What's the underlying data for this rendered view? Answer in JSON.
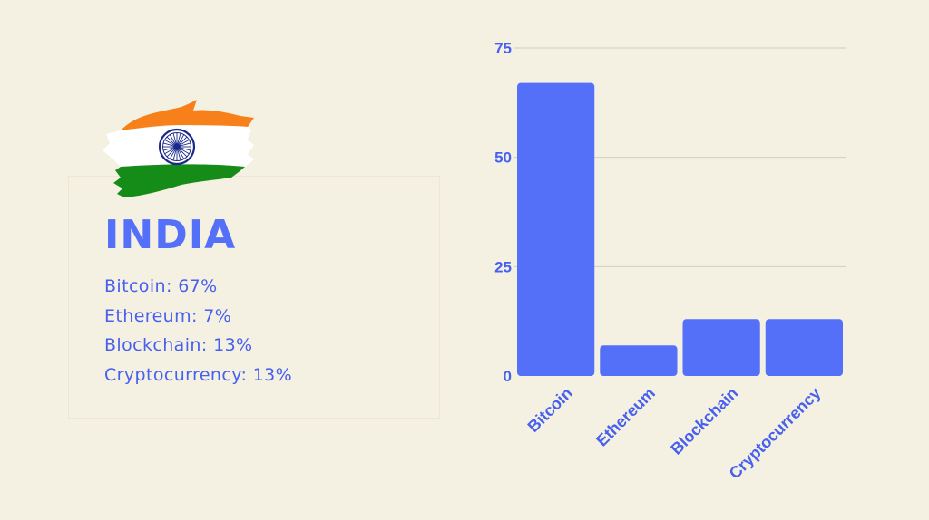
{
  "accent": "#5470f8",
  "text_color": "#4760ee",
  "flag_icon": "india-flag-icon",
  "card": {
    "country": "INDIA",
    "stats": [
      "Bitcoin: 67%",
      "Ethereum: 7%",
      "Blockchain: 13%",
      "Cryptocurrency: 13%"
    ]
  },
  "chart_data": {
    "type": "bar",
    "title": "",
    "xlabel": "",
    "ylabel": "",
    "categories": [
      "Bitcoin",
      "Ethereum",
      "Blockchain",
      "Cryptocurrency"
    ],
    "values": [
      67,
      7,
      13,
      13
    ],
    "ylim": [
      0,
      75
    ],
    "yticks": [
      0,
      25,
      50,
      75
    ],
    "grid": true,
    "color": "#5470f8"
  }
}
